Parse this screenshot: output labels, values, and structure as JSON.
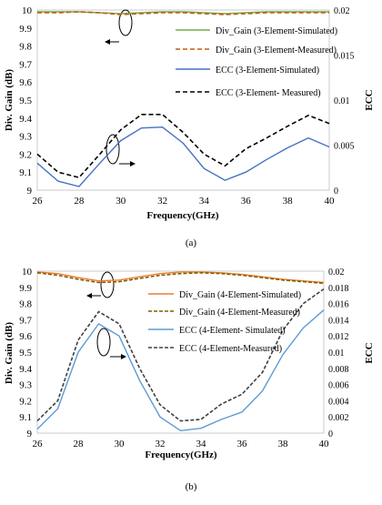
{
  "charts": [
    {
      "caption": "(a)",
      "chart_data": {
        "type": "line",
        "xlabel": "Frequency(GHz)",
        "ylabel": "Div. Gain (dB)",
        "y2label": "ECC",
        "xlim": [
          26,
          40
        ],
        "ylim": [
          9,
          10
        ],
        "y2lim": [
          0,
          0.02
        ],
        "x_ticks": [
          26,
          28,
          30,
          32,
          34,
          36,
          38,
          40
        ],
        "y_ticks": [
          9,
          9.1,
          9.2,
          9.3,
          9.4,
          9.5,
          9.6,
          9.7,
          9.8,
          9.9,
          10
        ],
        "y2_ticks": [
          0,
          0.005,
          0.01,
          0.015,
          0.02
        ],
        "legend_position": "top-right",
        "grid": false,
        "series": [
          {
            "name": "Div_Gain (3-Element-Simulated)",
            "axis": "left",
            "style": "solid",
            "color": "#70ad47",
            "x": [
              26,
              27,
              28,
              29,
              30,
              31,
              32,
              33,
              34,
              35,
              36,
              37,
              38,
              39,
              40
            ],
            "y": [
              9.99,
              9.99,
              9.99,
              9.985,
              9.98,
              9.985,
              9.99,
              9.99,
              9.985,
              9.98,
              9.985,
              9.99,
              9.99,
              9.99,
              9.99
            ]
          },
          {
            "name": "Div_Gain (3-Element-Measured)",
            "axis": "left",
            "style": "dashed",
            "color": "#c65911",
            "x": [
              26,
              27,
              28,
              29,
              30,
              31,
              32,
              33,
              34,
              35,
              36,
              37,
              38,
              39,
              40
            ],
            "y": [
              9.985,
              9.985,
              9.99,
              9.985,
              9.975,
              9.98,
              9.985,
              9.985,
              9.98,
              9.975,
              9.98,
              9.985,
              9.985,
              9.985,
              9.985
            ]
          },
          {
            "name": "ECC (3-Element-Simulated)",
            "axis": "right",
            "style": "solid",
            "color": "#4472c4",
            "x": [
              26,
              27,
              28,
              29,
              30,
              31,
              32,
              33,
              34,
              35,
              36,
              37,
              38,
              39,
              40
            ],
            "y": [
              0.003,
              0.001,
              0.0004,
              0.003,
              0.0055,
              0.0069,
              0.007,
              0.0052,
              0.0024,
              0.0011,
              0.002,
              0.0034,
              0.0047,
              0.0058,
              0.0048
            ]
          },
          {
            "name": "ECC (3-Element- Measured)",
            "axis": "right",
            "style": "dashed",
            "color": "#000000",
            "x": [
              26,
              27,
              28,
              29,
              30,
              31,
              32,
              33,
              34,
              35,
              36,
              37,
              38,
              39,
              40
            ],
            "y": [
              0.004,
              0.002,
              0.0014,
              0.004,
              0.0067,
              0.0084,
              0.0084,
              0.0064,
              0.004,
              0.0027,
              0.0046,
              0.0058,
              0.0071,
              0.0083,
              0.0074
            ]
          }
        ]
      }
    },
    {
      "caption": "(b)",
      "chart_data": {
        "type": "line",
        "xlabel": "Frequency(GHz)",
        "ylabel": "Div. Gain (dB)",
        "y2label": "ECC",
        "xlim": [
          26,
          40
        ],
        "ylim": [
          9,
          10
        ],
        "y2lim": [
          0,
          0.02
        ],
        "x_ticks": [
          26,
          28,
          30,
          32,
          34,
          36,
          38,
          40
        ],
        "y_ticks": [
          9,
          9.1,
          9.2,
          9.3,
          9.4,
          9.5,
          9.6,
          9.7,
          9.8,
          9.9,
          10
        ],
        "y2_ticks": [
          0,
          0.002,
          0.004,
          0.006,
          0.008,
          0.01,
          0.012,
          0.014,
          0.016,
          0.018,
          0.02
        ],
        "legend_position": "right",
        "grid": false,
        "series": [
          {
            "name": "Div_Gain (4-Element-Simulated)",
            "axis": "left",
            "style": "solid",
            "color": "#ed7d31",
            "x": [
              26,
              27,
              28,
              29,
              30,
              31,
              32,
              33,
              34,
              35,
              36,
              37,
              38,
              39,
              40
            ],
            "y": [
              9.995,
              9.985,
              9.96,
              9.94,
              9.945,
              9.965,
              9.985,
              9.995,
              9.995,
              9.99,
              9.98,
              9.965,
              9.95,
              9.94,
              9.93
            ]
          },
          {
            "name": "Div_Gain (4-Element-Measured)",
            "axis": "left",
            "style": "dashed",
            "color": "#7f6000",
            "x": [
              26,
              27,
              28,
              29,
              30,
              31,
              32,
              33,
              34,
              35,
              36,
              37,
              38,
              39,
              40
            ],
            "y": [
              9.99,
              9.975,
              9.95,
              9.93,
              9.935,
              9.955,
              9.975,
              9.985,
              9.99,
              9.985,
              9.975,
              9.96,
              9.945,
              9.935,
              9.925
            ]
          },
          {
            "name": "ECC (4-Element- Simulated)",
            "axis": "right",
            "style": "solid",
            "color": "#5b9bd5",
            "x": [
              26,
              27,
              28,
              29,
              30,
              31,
              32,
              33,
              34,
              35,
              36,
              37,
              38,
              39,
              40
            ],
            "y": [
              0.0005,
              0.003,
              0.01,
              0.0135,
              0.012,
              0.0065,
              0.002,
              0.0003,
              0.0006,
              0.0017,
              0.0026,
              0.0052,
              0.0097,
              0.013,
              0.0152
            ]
          },
          {
            "name": "ECC (4-Element-Measured)",
            "axis": "right",
            "style": "dashed",
            "color": "#404040",
            "x": [
              26,
              27,
              28,
              29,
              30,
              31,
              32,
              33,
              34,
              35,
              36,
              37,
              38,
              39,
              40
            ],
            "y": [
              0.0015,
              0.004,
              0.0115,
              0.015,
              0.0135,
              0.008,
              0.0035,
              0.0015,
              0.0017,
              0.0036,
              0.0048,
              0.0075,
              0.0127,
              0.016,
              0.0178
            ]
          }
        ]
      }
    }
  ]
}
